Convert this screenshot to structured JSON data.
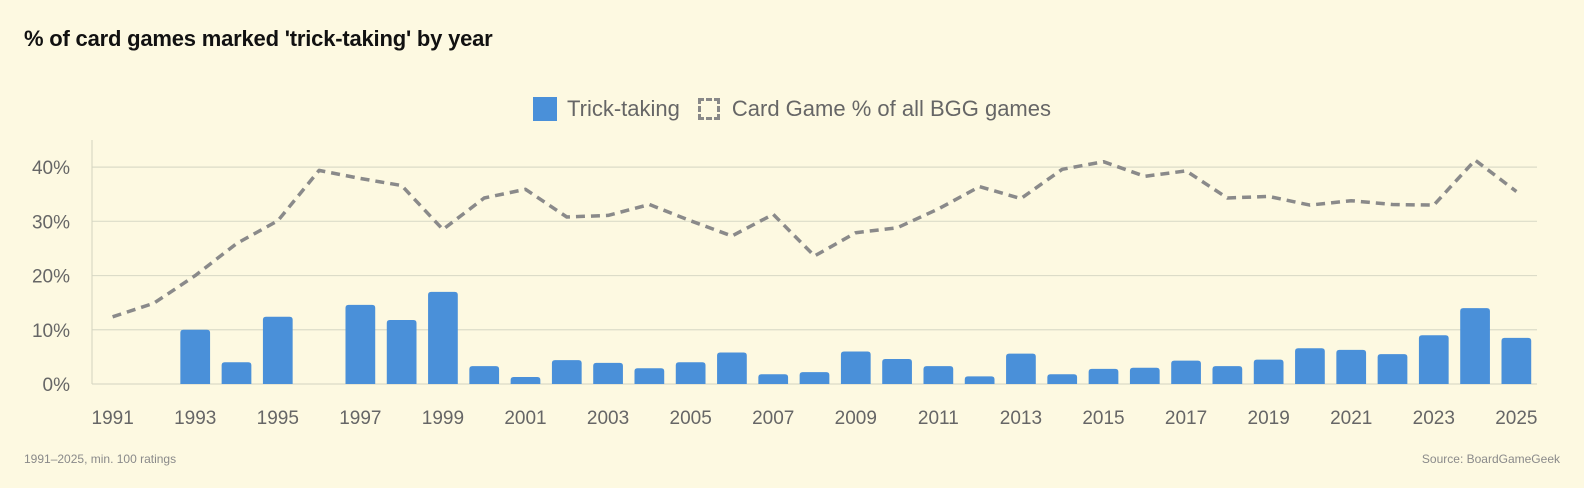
{
  "title": "% of card games marked 'trick-taking' by year",
  "footnote": "1991–2025, min. 100 ratings",
  "source": "Source: BoardGameGeek",
  "colors": {
    "bar": "#4a90d9",
    "line": "#8a8a8a",
    "grid": "#dcdcc8",
    "background": "#fdf9e1"
  },
  "legend": {
    "bar_label": "Trick-taking",
    "line_label": "Card Game % of all BGG games"
  },
  "chart_data": {
    "type": "bar",
    "ylim": [
      0,
      45
    ],
    "y_ticks": [
      0,
      10,
      20,
      30,
      40
    ],
    "y_tick_labels": [
      "0%",
      "10%",
      "20%",
      "30%",
      "40%"
    ],
    "x_tick_labels": [
      "1991",
      "1993",
      "1995",
      "1997",
      "1999",
      "2001",
      "2003",
      "2005",
      "2007",
      "2009",
      "2011",
      "2013",
      "2015",
      "2017",
      "2019",
      "2021",
      "2023",
      "2025"
    ],
    "categories": [
      "1991",
      "1992",
      "1993",
      "1994",
      "1995",
      "1996",
      "1997",
      "1998",
      "1999",
      "2000",
      "2001",
      "2002",
      "2003",
      "2004",
      "2005",
      "2006",
      "2007",
      "2008",
      "2009",
      "2010",
      "2011",
      "2012",
      "2013",
      "2014",
      "2015",
      "2016",
      "2017",
      "2018",
      "2019",
      "2020",
      "2021",
      "2022",
      "2023",
      "2024",
      "2025"
    ],
    "series": [
      {
        "name": "Trick-taking",
        "type": "bar",
        "values": [
          0,
          0,
          10,
          4,
          12.4,
          0,
          14.6,
          11.8,
          17,
          3.3,
          1.3,
          4.4,
          3.9,
          2.9,
          4,
          5.8,
          1.8,
          2.2,
          6,
          4.6,
          3.3,
          1.4,
          5.6,
          1.8,
          2.8,
          3,
          4.3,
          3.3,
          4.5,
          6.6,
          6.3,
          5.5,
          9,
          14,
          8.5
        ]
      },
      {
        "name": "Card Game % of all BGG games",
        "type": "line",
        "style": "dashed",
        "values": [
          12.4,
          14.9,
          20,
          25.9,
          30.1,
          39.4,
          37.9,
          36.6,
          28.5,
          34.3,
          35.9,
          30.8,
          31.1,
          33.1,
          30.1,
          27.3,
          31.3,
          23.6,
          27.9,
          28.8,
          32.3,
          36.4,
          34.2,
          39.6,
          41,
          38.3,
          39.3,
          34.3,
          34.6,
          33,
          33.8,
          33.1,
          33,
          41.3,
          35.5
        ]
      }
    ]
  }
}
